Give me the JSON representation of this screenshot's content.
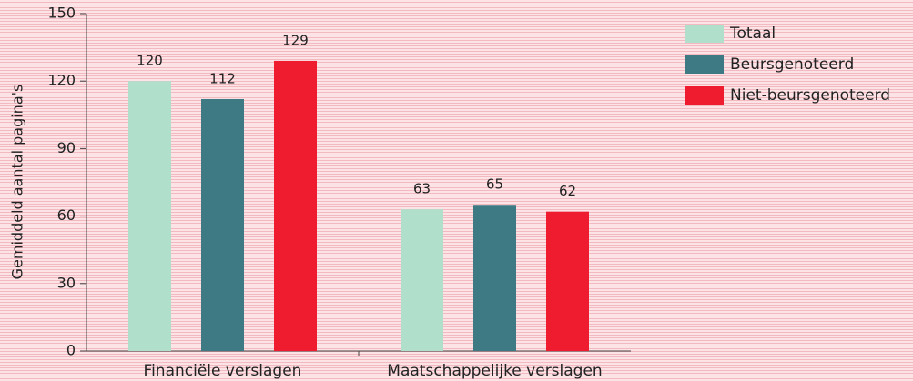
{
  "chart_data": {
    "type": "bar",
    "y_label": "Gemiddeld aantal pagina's",
    "categories": [
      "Financiële verslagen",
      "Maatschappelijke verslagen"
    ],
    "series": [
      {
        "name": "Totaal",
        "color": "#b0e0cc",
        "values": [
          120,
          63
        ]
      },
      {
        "name": "Beursgenoteerd",
        "color": "#3e7a84",
        "values": [
          112,
          65
        ]
      },
      {
        "name": "Niet-beursgenoteerd",
        "color": "#ee1c2e",
        "values": [
          129,
          62
        ]
      }
    ],
    "ylim": [
      0,
      150
    ],
    "yticks": [
      0,
      30,
      60,
      90,
      120,
      150
    ],
    "legend": "upper right"
  }
}
